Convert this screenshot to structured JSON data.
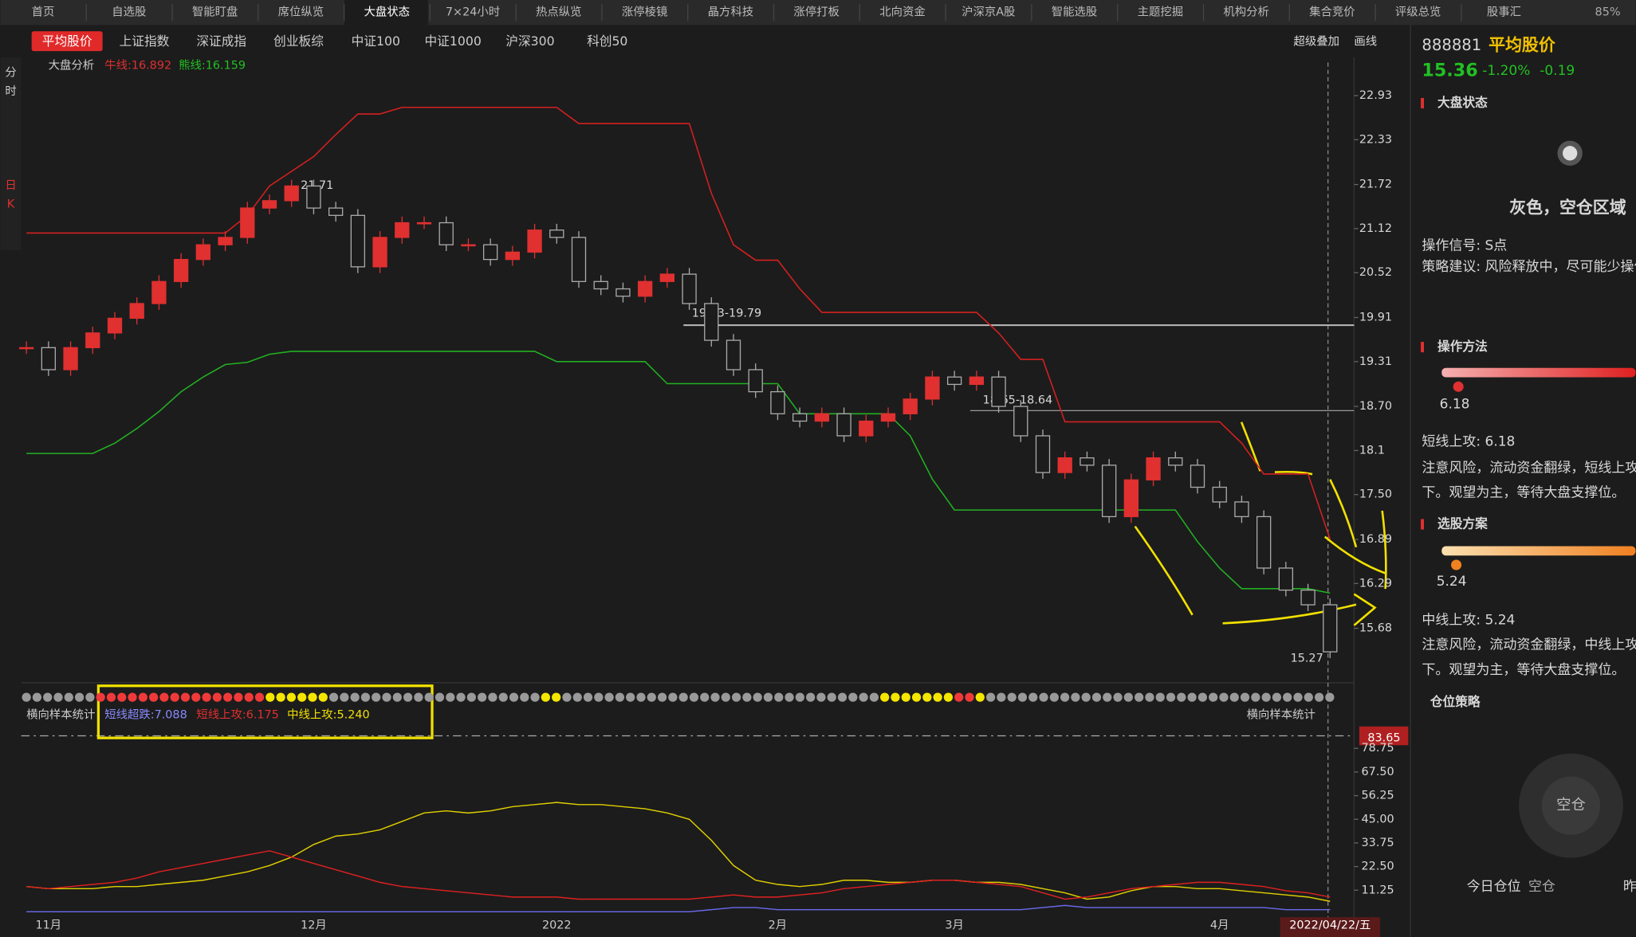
{
  "tabs": [
    "首页",
    "自选股",
    "智能盯盘",
    "席位纵览",
    "大盘状态",
    "7×24小时",
    "热点纵览",
    "涨停棱镜",
    "晶方科技",
    "涨停打板",
    "北向资金",
    "沪深京A股",
    "智能选股",
    "主题挖掘",
    "机构分析",
    "集合竞价",
    "评级总览",
    "股事汇"
  ],
  "active_tab": 4,
  "zoom": "85%",
  "index_tabs": [
    "平均股价",
    "上证指数",
    "深证成指",
    "创业板综",
    "中证100",
    "中证1000",
    "沪深300",
    "科创50"
  ],
  "tools": [
    "超级叠加",
    "画线"
  ],
  "period_labels": [
    "分",
    "时",
    "日",
    "K"
  ],
  "chart_data": [
    {
      "type": "candlestick",
      "legend": [
        "大盘分析",
        "牛线:16.892",
        "熊线:16.159"
      ],
      "annotations": [
        "21.71",
        "19.83-19.79",
        "18.65-18.64",
        "15.27"
      ],
      "categories": [
        null,
        "11月",
        null,
        null,
        null,
        null,
        null,
        null,
        null,
        null,
        null,
        null,
        null,
        "12月",
        null,
        null,
        null,
        null,
        null,
        null,
        null,
        null,
        null,
        null,
        "2022",
        null,
        null,
        null,
        null,
        null,
        null,
        null,
        null,
        null,
        "2月",
        null,
        null,
        null,
        null,
        null,
        null,
        null,
        "3月",
        null,
        null,
        null,
        null,
        null,
        null,
        null,
        null,
        null,
        null,
        null,
        "4月",
        null,
        null,
        null,
        null,
        "2022/04/22/五"
      ],
      "series": [
        {
          "color": "#e03030",
          "values": [
            19.5,
            19.2,
            19.5,
            19.7,
            19.9,
            20.1,
            20.4,
            20.7,
            20.9,
            21.0,
            21.4,
            21.5,
            21.7,
            21.4,
            21.3,
            20.6,
            21.0,
            21.2,
            21.2,
            20.9,
            20.9,
            20.7,
            20.8,
            21.1,
            21.0,
            20.4,
            20.3,
            20.2,
            20.4,
            20.5,
            20.1,
            19.6,
            19.2,
            18.9,
            18.6,
            18.5,
            18.6,
            18.3,
            18.5,
            18.6,
            18.8,
            19.1,
            19.0,
            19.1,
            18.7,
            18.3,
            17.8,
            18.0,
            17.9,
            17.2,
            17.7,
            18.0,
            17.9,
            17.6,
            17.4,
            17.2,
            16.5,
            16.2,
            16.0,
            15.36
          ]
        },
        {
          "color": "#d42020",
          "values": [
            21.06,
            21.06,
            21.06,
            21.06,
            21.06,
            21.06,
            21.06,
            21.06,
            21.06,
            21.06,
            21.3,
            21.7,
            21.9,
            22.1,
            22.4,
            22.68,
            22.68,
            22.77,
            22.77,
            22.77,
            22.77,
            22.77,
            22.77,
            22.77,
            22.77,
            22.55,
            22.55,
            22.55,
            22.55,
            22.55,
            22.55,
            21.6,
            20.9,
            20.69,
            20.69,
            20.3,
            19.98,
            19.98,
            19.98,
            19.98,
            19.98,
            19.98,
            19.98,
            19.98,
            19.7,
            19.34,
            19.34,
            18.49,
            18.49,
            18.49,
            18.49,
            18.49,
            18.49,
            18.49,
            18.49,
            18.2,
            17.78,
            17.78,
            17.78,
            16.892
          ]
        },
        {
          "color": "#22b022",
          "values": [
            18.06,
            18.06,
            18.06,
            18.06,
            18.2,
            18.4,
            18.63,
            18.9,
            19.1,
            19.27,
            19.3,
            19.41,
            19.45,
            19.45,
            19.45,
            19.45,
            19.45,
            19.45,
            19.45,
            19.45,
            19.45,
            19.45,
            19.45,
            19.45,
            19.31,
            19.31,
            19.31,
            19.31,
            19.31,
            19.01,
            19.01,
            19.01,
            19.01,
            19.01,
            19.01,
            18.6,
            18.6,
            18.6,
            18.6,
            18.6,
            18.3,
            17.71,
            17.29,
            17.29,
            17.29,
            17.29,
            17.29,
            17.29,
            17.29,
            17.29,
            17.29,
            17.29,
            17.29,
            16.86,
            16.5,
            16.22,
            16.22,
            16.22,
            16.22,
            16.159
          ]
        }
      ],
      "ylim": [
        14.94,
        23.21
      ],
      "yticks": [
        22.93,
        22.33,
        21.72,
        21.12,
        20.52,
        19.91,
        19.31,
        {
          "value": 18.7,
          "label": "18.70"
        },
        18.1,
        {
          "value": 17.5,
          "label": "17.50"
        },
        16.89,
        16.29,
        15.68
      ]
    },
    {
      "type": "line",
      "legend": [
        "横向样本统计",
        "短线超跌:7.088",
        "短线上攻:6.175",
        "中线上攻:5.240"
      ],
      "dot_runs": [
        {
          "color": "#9a9a9a",
          "count": 7
        },
        {
          "color": "#f03a3a",
          "count": 16
        },
        {
          "color": "#f5e600",
          "count": 6
        },
        {
          "color": "#9a9a9a",
          "count": 20
        },
        {
          "color": "#f5e600",
          "count": 2
        },
        {
          "color": "#9a9a9a",
          "count": 30
        },
        {
          "color": "#f5e600",
          "count": 7
        },
        {
          "color": "#f03a3a",
          "count": 2
        },
        {
          "color": "#f5e600",
          "count": 1
        },
        {
          "color": "#9a9a9a",
          "count": 33
        }
      ],
      "series": [
        {
          "color": "#e0d000",
          "values": [
            13,
            12,
            12,
            12,
            13,
            13,
            14,
            15,
            16,
            18,
            20,
            23,
            27,
            33,
            37,
            38,
            40,
            44,
            48,
            49,
            48,
            49,
            51,
            52,
            53,
            52,
            52,
            51,
            50,
            48,
            45,
            35,
            23,
            16,
            14,
            13,
            14,
            16,
            16,
            15,
            15,
            16,
            16,
            15,
            15,
            14,
            12,
            10,
            7,
            8,
            11,
            13,
            13,
            12,
            12,
            11,
            10,
            9,
            8,
            6
          ]
        },
        {
          "color": "#e02020",
          "values": [
            13,
            12,
            13,
            14,
            15,
            17,
            20,
            22,
            24,
            26,
            28,
            30,
            27,
            24,
            21,
            18,
            15,
            13,
            12,
            11,
            10,
            9,
            8,
            8,
            8,
            7,
            7,
            7,
            7,
            7,
            7,
            8,
            9,
            8,
            8,
            9,
            10,
            12,
            13,
            14,
            15,
            16,
            16,
            15,
            14,
            13,
            10,
            7,
            8,
            10,
            12,
            13,
            14,
            15,
            15,
            14,
            13,
            11,
            10,
            8
          ]
        },
        {
          "color": "#6a6af0",
          "values": [
            1,
            1,
            1,
            1,
            1,
            1,
            1,
            1,
            1,
            1,
            1,
            1,
            1,
            1,
            1,
            1,
            1,
            1,
            1,
            1,
            1,
            1,
            1,
            1,
            1,
            1,
            1,
            1,
            1,
            1,
            1,
            2,
            3,
            3,
            2,
            2,
            2,
            2,
            2,
            2,
            2,
            2,
            2,
            2,
            2,
            2,
            3,
            4,
            3,
            3,
            3,
            3,
            3,
            3,
            3,
            3,
            3,
            2,
            2,
            2
          ]
        }
      ],
      "last_value": 83.65,
      "ylim": [
        -0.6,
        85.2
      ],
      "yticks": [
        78.75,
        {
          "value": 67.5,
          "label": "67.50"
        },
        56.25,
        {
          "value": 45,
          "label": "45.00"
        },
        33.75,
        {
          "value": 22.5,
          "label": "22.50"
        },
        11.25
      ]
    }
  ],
  "panel": {
    "code": "888881",
    "name": "平均股价",
    "price": "15.36",
    "pct": "-1.20%",
    "change": "-0.19",
    "status_title": "大盘状态",
    "status": "灰色，空仓区域",
    "signal": "操作信号: S点",
    "advice": "策略建议: 风险释放中，尽可能少操作",
    "method_title": "操作方法",
    "method_value": "6.18",
    "method_name": "短线上攻: 6.18",
    "method_text": [
      "注意风险，流动资金翻绿，短线上攻",
      "下。观望为主，等待大盘支撑位。"
    ],
    "pick_title": "选股方案",
    "pick_value": "5.24",
    "pick_name": "中线上攻: 5.24",
    "pick_text": [
      "注意风险，流动资金翻绿，中线上攻",
      "下。观望为主，等待大盘支撑位。"
    ],
    "position_title": "仓位策略",
    "position_badge": "空仓",
    "today_label": "今日仓位",
    "today_value": "空仓",
    "yesterday_label": "昨"
  }
}
